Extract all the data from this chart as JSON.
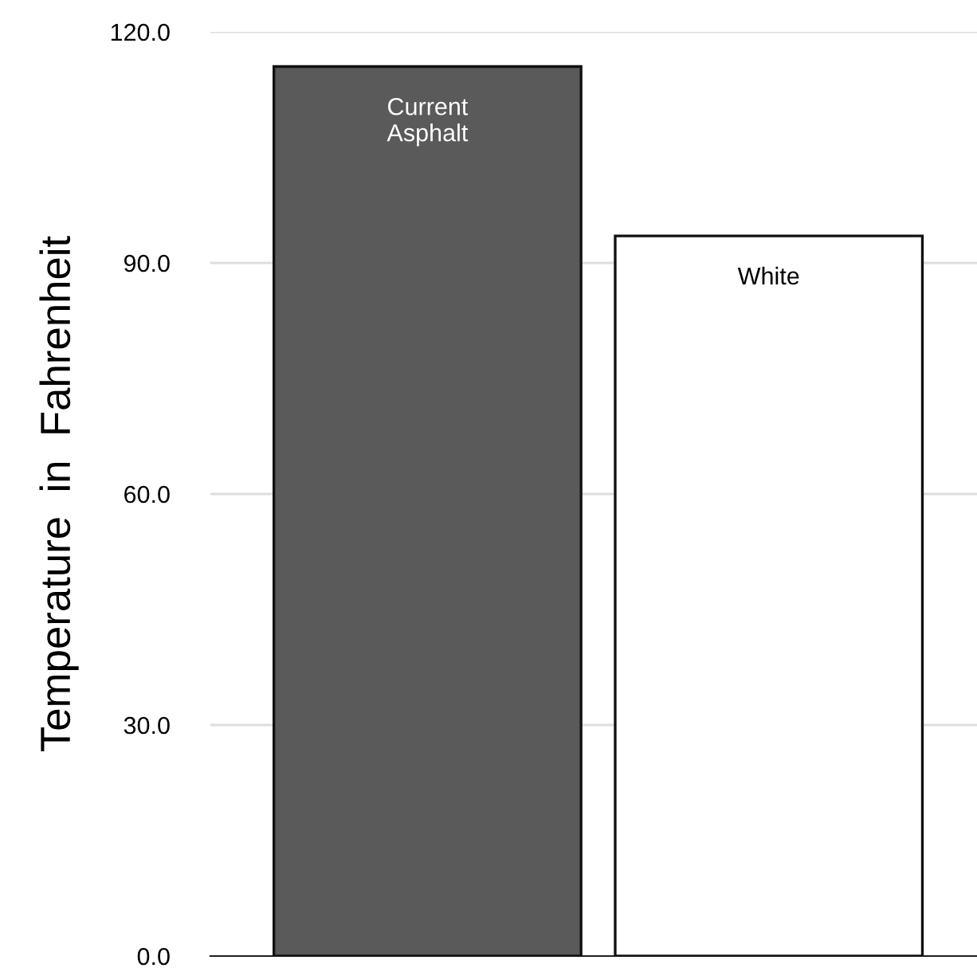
{
  "chart_data": {
    "type": "bar",
    "ylabel": "Temperature  in  Fahrenheit",
    "categories": [
      "Current\nAsphalt",
      "White"
    ],
    "series": [
      {
        "colors": [
          "#5a5a5a",
          "#ffffff"
        ],
        "values": [
          115.5,
          93.5
        ]
      }
    ],
    "ylim": [
      0,
      120
    ],
    "yticks": [
      {
        "value": 0,
        "label": "0.0"
      },
      {
        "value": 30,
        "label": "30.0"
      },
      {
        "value": 60,
        "label": "60.0"
      },
      {
        "value": 90,
        "label": "90.0"
      },
      {
        "value": 120,
        "label": "120.0"
      }
    ],
    "grid": "y",
    "legend": false
  }
}
